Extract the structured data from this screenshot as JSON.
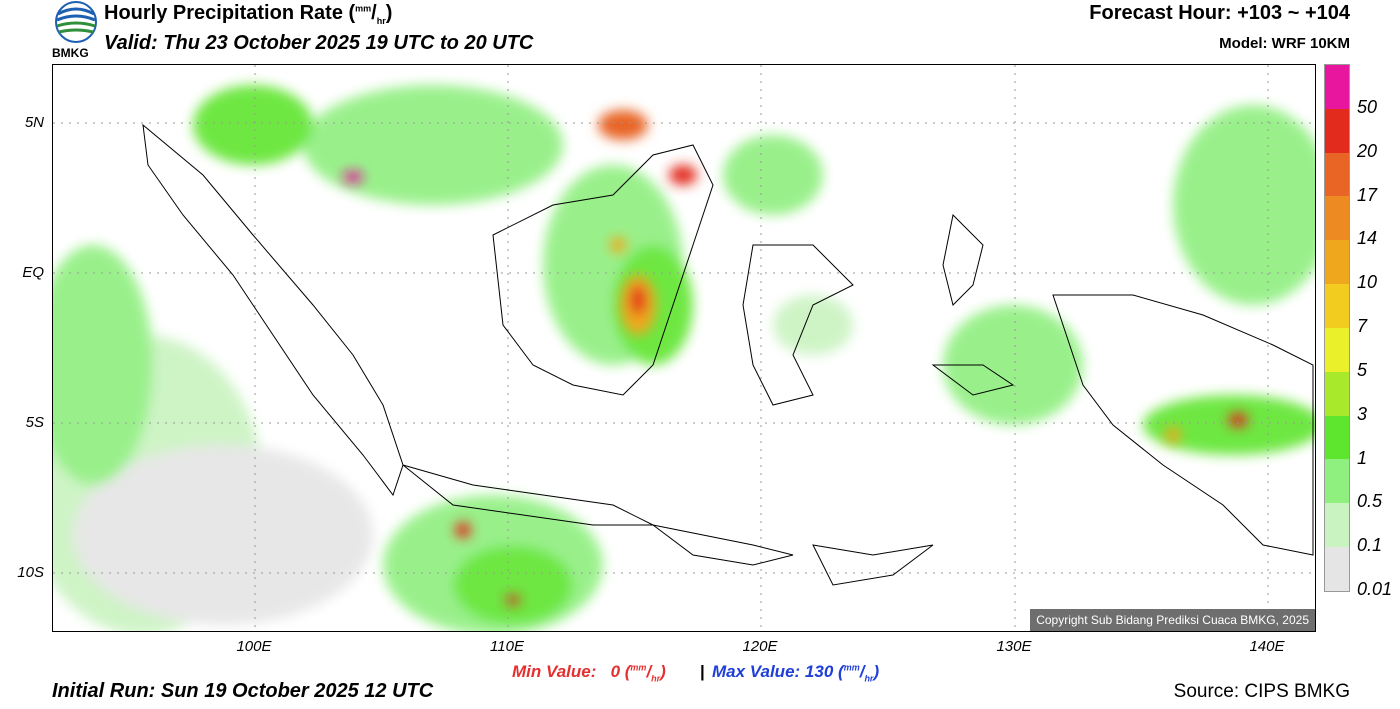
{
  "header": {
    "title": "Hourly Precipitation Rate (",
    "unit_num": "mm",
    "unit_den": "hr",
    "title_close": ")",
    "valid": "Valid: Thu 23 October 2025 19 UTC to 20 UTC",
    "forecast_hour": "Forecast Hour: +103 ~ +104",
    "model": "Model: WRF 10KM",
    "logo_text": "BMKG"
  },
  "map": {
    "lat_labels": [
      "5N",
      "EQ",
      "5S",
      "10S"
    ],
    "lon_labels": [
      "100E",
      "110E",
      "120E",
      "130E",
      "140E"
    ],
    "copyright": "Copyright Sub Bidang Prediksi Cuaca BMKG, 2025"
  },
  "legend": {
    "values": [
      "50",
      "20",
      "17",
      "14",
      "10",
      "7",
      "5",
      "3",
      "1",
      "0.5",
      "0.1",
      "0.01"
    ],
    "colors": [
      "#e8169f",
      "#e22a1d",
      "#e86525",
      "#ed8a22",
      "#efa81d",
      "#f2cd1f",
      "#eaf02a",
      "#a9e92c",
      "#5ee52d",
      "#8fef7f",
      "#c9f3c0",
      "#e5e5e5"
    ]
  },
  "footer": {
    "min_label": "Min Value:",
    "min_value": "0",
    "separator": "|",
    "max_label": "Max Value:",
    "max_value": "130",
    "unit_num": "mm",
    "unit_den": "hr",
    "initial_run": "Initial Run: Sun 19 October 2025 12 UTC",
    "source": "Source: CIPS BMKG"
  }
}
